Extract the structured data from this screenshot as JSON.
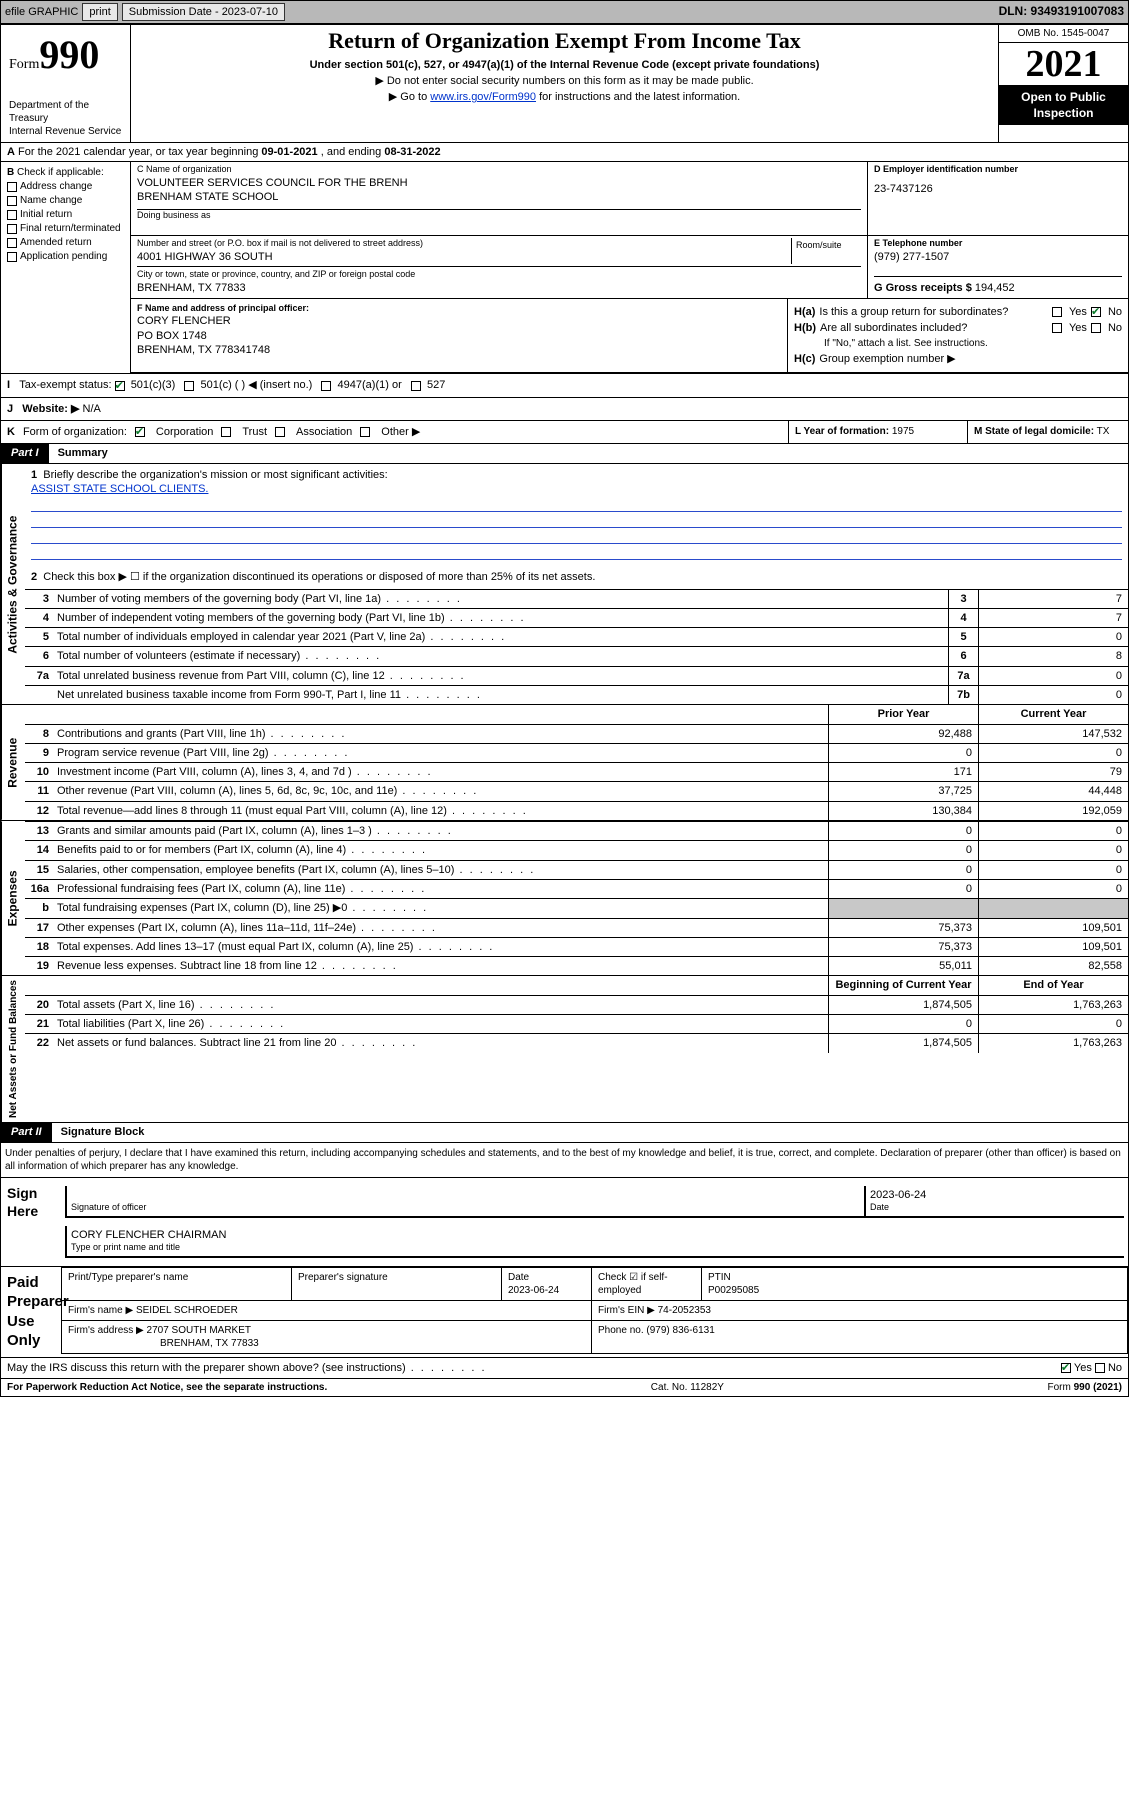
{
  "colors": {
    "bg": "#ffffff",
    "text": "#000000",
    "topbar_bg": "#b8b8b8",
    "btn_bg": "#e8e8e8",
    "link": "#0033cc",
    "rule_blue": "#2a4bcc",
    "inverse_bg": "#000000",
    "inverse_text": "#ffffff",
    "grey_cell": "#c8c8c8",
    "check_green": "#0a7a2a"
  },
  "topbar": {
    "efile": "efile GRAPHIC",
    "print": "print",
    "submission_label": "Submission Date - 2023-07-10",
    "dln": "DLN: 93493191007083"
  },
  "header": {
    "form_word": "Form",
    "form_num": "990",
    "title": "Return of Organization Exempt From Income Tax",
    "subtitle": "Under section 501(c), 527, or 4947(a)(1) of the Internal Revenue Code (except private foundations)",
    "note1": "▶ Do not enter social security numbers on this form as it may be made public.",
    "note2_pre": "▶ Go to ",
    "note2_link": "www.irs.gov/Form990",
    "note2_post": " for instructions and the latest information.",
    "dept": "Department of the Treasury",
    "irs": "Internal Revenue Service",
    "omb": "OMB No. 1545-0047",
    "year": "2021",
    "open": "Open to Public Inspection"
  },
  "A": {
    "text_pre": "For the 2021 calendar year, or tax year beginning ",
    "begin": "09-01-2021",
    "mid": " , and ending ",
    "end": "08-31-2022"
  },
  "B": {
    "label": "Check if applicable:",
    "items": [
      "Address change",
      "Name change",
      "Initial return",
      "Final return/terminated",
      "Amended return",
      "Application pending"
    ]
  },
  "C": {
    "name_lbl": "C Name of organization",
    "name1": "VOLUNTEER SERVICES COUNCIL FOR THE BRENH",
    "name2": "BRENHAM STATE SCHOOL",
    "dba_lbl": "Doing business as",
    "addr_lbl": "Number and street (or P.O. box if mail is not delivered to street address)",
    "room_lbl": "Room/suite",
    "addr": "4001 HIGHWAY 36 SOUTH",
    "city_lbl": "City or town, state or province, country, and ZIP or foreign postal code",
    "city": "BRENHAM, TX  77833"
  },
  "D": {
    "lbl": "D Employer identification number",
    "val": "23-7437126"
  },
  "E": {
    "lbl": "E Telephone number",
    "val": "(979) 277-1507"
  },
  "G": {
    "lbl": "G Gross receipts $",
    "val": "194,452"
  },
  "F": {
    "lbl": "F  Name and address of principal officer:",
    "l1": "CORY FLENCHER",
    "l2": "PO BOX 1748",
    "l3": "BRENHAM, TX  778341748"
  },
  "H": {
    "a": "Is this a group return for subordinates?",
    "b": "Are all subordinates included?",
    "bnote": "If \"No,\" attach a list. See instructions.",
    "c": "Group exemption number ▶",
    "yes": "Yes",
    "no": "No"
  },
  "I": {
    "lbl": "Tax-exempt status:",
    "o1": "501(c)(3)",
    "o2": "501(c) (   ) ◀ (insert no.)",
    "o3": "4947(a)(1) or",
    "o4": "527"
  },
  "J": {
    "lbl": "Website: ▶",
    "val": "N/A"
  },
  "K": {
    "lbl": "Form of organization:",
    "o1": "Corporation",
    "o2": "Trust",
    "o3": "Association",
    "o4": "Other ▶"
  },
  "L": {
    "lbl": "L Year of formation:",
    "val": "1975"
  },
  "M": {
    "lbl": "M State of legal domicile:",
    "val": "TX"
  },
  "partI": {
    "num": "Part I",
    "title": "Summary"
  },
  "summary": {
    "q1": "Briefly describe the organization's mission or most significant activities:",
    "mission": "ASSIST STATE SCHOOL CLIENTS.",
    "q2": "Check this box ▶ ☐  if the organization discontinued its operations or disposed of more than 25% of its net assets.",
    "rows_gov": [
      {
        "n": "3",
        "t": "Number of voting members of the governing body (Part VI, line 1a)",
        "box": "3",
        "v": "7"
      },
      {
        "n": "4",
        "t": "Number of independent voting members of the governing body (Part VI, line 1b)",
        "box": "4",
        "v": "7"
      },
      {
        "n": "5",
        "t": "Total number of individuals employed in calendar year 2021 (Part V, line 2a)",
        "box": "5",
        "v": "0"
      },
      {
        "n": "6",
        "t": "Total number of volunteers (estimate if necessary)",
        "box": "6",
        "v": "8"
      },
      {
        "n": "7a",
        "t": "Total unrelated business revenue from Part VIII, column (C), line 12",
        "box": "7a",
        "v": "0"
      },
      {
        "n": "",
        "t": "Net unrelated business taxable income from Form 990-T, Part I, line 11",
        "box": "7b",
        "v": "0"
      }
    ],
    "col_prior": "Prior Year",
    "col_curr": "Current Year",
    "rows_rev": [
      {
        "n": "8",
        "t": "Contributions and grants (Part VIII, line 1h)",
        "p": "92,488",
        "c": "147,532"
      },
      {
        "n": "9",
        "t": "Program service revenue (Part VIII, line 2g)",
        "p": "0",
        "c": "0"
      },
      {
        "n": "10",
        "t": "Investment income (Part VIII, column (A), lines 3, 4, and 7d )",
        "p": "171",
        "c": "79"
      },
      {
        "n": "11",
        "t": "Other revenue (Part VIII, column (A), lines 5, 6d, 8c, 9c, 10c, and 11e)",
        "p": "37,725",
        "c": "44,448"
      },
      {
        "n": "12",
        "t": "Total revenue—add lines 8 through 11 (must equal Part VIII, column (A), line 12)",
        "p": "130,384",
        "c": "192,059"
      }
    ],
    "rows_exp": [
      {
        "n": "13",
        "t": "Grants and similar amounts paid (Part IX, column (A), lines 1–3 )",
        "p": "0",
        "c": "0"
      },
      {
        "n": "14",
        "t": "Benefits paid to or for members (Part IX, column (A), line 4)",
        "p": "0",
        "c": "0"
      },
      {
        "n": "15",
        "t": "Salaries, other compensation, employee benefits (Part IX, column (A), lines 5–10)",
        "p": "0",
        "c": "0"
      },
      {
        "n": "16a",
        "t": "Professional fundraising fees (Part IX, column (A), line 11e)",
        "p": "0",
        "c": "0"
      },
      {
        "n": "b",
        "t": "Total fundraising expenses (Part IX, column (D), line 25) ▶0",
        "p": "",
        "c": "",
        "grey": true
      },
      {
        "n": "17",
        "t": "Other expenses (Part IX, column (A), lines 11a–11d, 11f–24e)",
        "p": "75,373",
        "c": "109,501"
      },
      {
        "n": "18",
        "t": "Total expenses. Add lines 13–17 (must equal Part IX, column (A), line 25)",
        "p": "75,373",
        "c": "109,501"
      },
      {
        "n": "19",
        "t": "Revenue less expenses. Subtract line 18 from line 12",
        "p": "55,011",
        "c": "82,558"
      }
    ],
    "col_begin": "Beginning of Current Year",
    "col_end": "End of Year",
    "rows_net": [
      {
        "n": "20",
        "t": "Total assets (Part X, line 16)",
        "p": "1,874,505",
        "c": "1,763,263"
      },
      {
        "n": "21",
        "t": "Total liabilities (Part X, line 26)",
        "p": "0",
        "c": "0"
      },
      {
        "n": "22",
        "t": "Net assets or fund balances. Subtract line 21 from line 20",
        "p": "1,874,505",
        "c": "1,763,263"
      }
    ]
  },
  "partII": {
    "num": "Part II",
    "title": "Signature Block"
  },
  "jurat": "Under penalties of perjury, I declare that I have examined this return, including accompanying schedules and statements, and to the best of my knowledge and belief, it is true, correct, and complete. Declaration of preparer (other than officer) is based on all information of which preparer has any knowledge.",
  "sign": {
    "side": "Sign Here",
    "sig_lbl": "Signature of officer",
    "date_lbl": "Date",
    "date": "2023-06-24",
    "name": "CORY FLENCHER  CHAIRMAN",
    "name_lbl": "Type or print name and title"
  },
  "prep": {
    "side": "Paid Preparer Use Only",
    "h1": "Print/Type preparer's name",
    "h2": "Preparer's signature",
    "h3": "Date",
    "h3v": "2023-06-24",
    "h4": "Check ☑ if self-employed",
    "h5": "PTIN",
    "h5v": "P00295085",
    "firm_lbl": "Firm's name    ▶",
    "firm": "SEIDEL SCHROEDER",
    "ein_lbl": "Firm's EIN ▶",
    "ein": "74-2052353",
    "addr_lbl": "Firm's address ▶",
    "addr1": "2707 SOUTH MARKET",
    "addr2": "BRENHAM, TX  77833",
    "phone_lbl": "Phone no.",
    "phone": "(979) 836-6131"
  },
  "discuss": {
    "q": "May the IRS discuss this return with the preparer shown above? (see instructions)",
    "yes": "Yes",
    "no": "No"
  },
  "footer": {
    "l": "For Paperwork Reduction Act Notice, see the separate instructions.",
    "m": "Cat. No. 11282Y",
    "r": "Form 990 (2021)"
  }
}
